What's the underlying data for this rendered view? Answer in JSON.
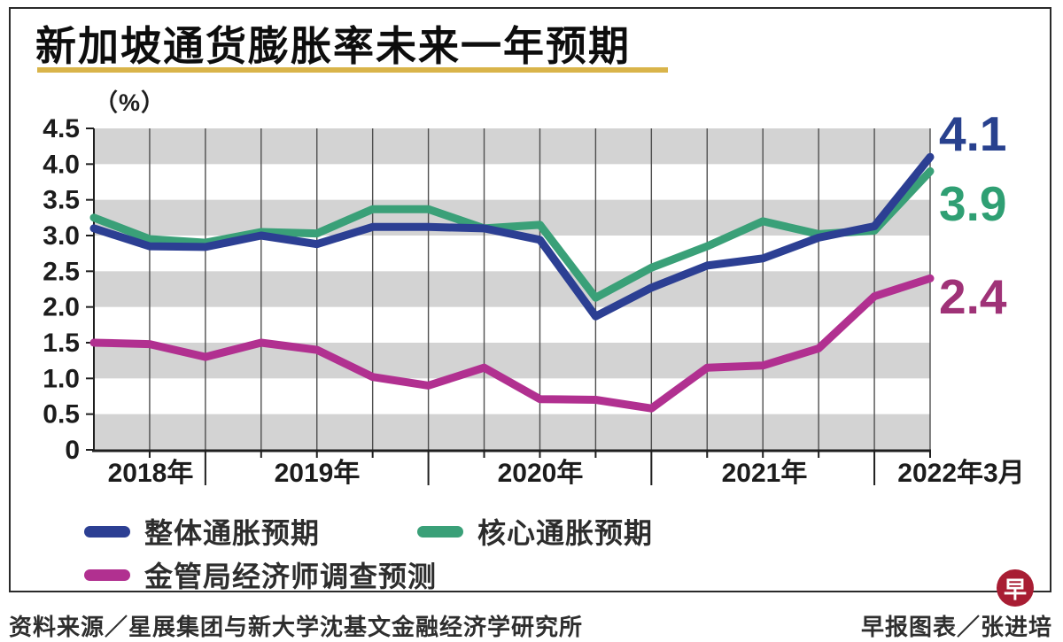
{
  "title": "新加坡通货膨胀率未来一年预期",
  "unit_label": "（%）",
  "legend": {
    "items": [
      {
        "label": "整体通胀预期",
        "color": "#2c3f93"
      },
      {
        "label": "核心通胀预期",
        "color": "#3aa078"
      },
      {
        "label": "金管局经济师调查预测",
        "color": "#b13090"
      }
    ]
  },
  "footer": {
    "source": "资料来源／星展集团与新大学沈基文金融经济学研究所",
    "credit": "早报图表／张进培",
    "logo_glyph": "早"
  },
  "theme": {
    "underline_gold": "#d9b44a",
    "band_gray": "#d3d3d3",
    "gridline": "#4f4f4f",
    "axis": "#1f1f1f",
    "tick_label": "#1c1c1c",
    "logo_red": "#a81d33"
  },
  "chart_data": {
    "type": "line",
    "x": [
      "2018年6月",
      "2018年9月",
      "2018年12月",
      "2019年3月",
      "2019年6月",
      "2019年9月",
      "2019年12月",
      "2020年3月",
      "2020年6月",
      "2020年9月",
      "2020年12月",
      "2021年3月",
      "2021年6月",
      "2021年9月",
      "2021年12月",
      "2022年3月"
    ],
    "x_axis_labels": [
      "2018年",
      "2019年",
      "2020年",
      "2021年",
      "2022年3月"
    ],
    "yticks": [
      "4.5",
      "4.0",
      "3.5",
      "3.0",
      "2.5",
      "2.0",
      "1.5",
      "1.0",
      "0.5",
      "0"
    ],
    "ylim": [
      0,
      4.5
    ],
    "ylabel": "（%）",
    "title": "新加坡通货膨胀率未来一年预期",
    "grid": "vertical-quarterly, horizontal gray bands every 0.5",
    "legend_position": "bottom",
    "series": [
      {
        "name": "整体通胀预期",
        "color": "#2c3f93",
        "values": [
          3.1,
          2.85,
          2.84,
          3.0,
          2.88,
          3.12,
          3.12,
          3.1,
          2.94,
          1.87,
          2.27,
          2.58,
          2.68,
          2.97,
          3.13,
          4.1
        ],
        "end_label": "4.1",
        "end_label_color": "#28418e"
      },
      {
        "name": "核心通胀预期",
        "color": "#3aa078",
        "values": [
          3.25,
          2.95,
          2.9,
          3.05,
          3.03,
          3.37,
          3.37,
          3.1,
          3.15,
          2.13,
          2.55,
          2.85,
          3.2,
          3.02,
          3.07,
          3.9
        ],
        "end_label": "3.9",
        "end_label_color": "#2f9f73"
      },
      {
        "name": "金管局经济师调查预测",
        "color": "#b13090",
        "values": [
          1.5,
          1.48,
          1.3,
          1.5,
          1.4,
          1.02,
          0.9,
          1.15,
          0.71,
          0.7,
          0.58,
          1.15,
          1.18,
          1.42,
          2.15,
          2.4
        ],
        "end_label": "2.4",
        "end_label_color": "#9f3277"
      }
    ]
  }
}
